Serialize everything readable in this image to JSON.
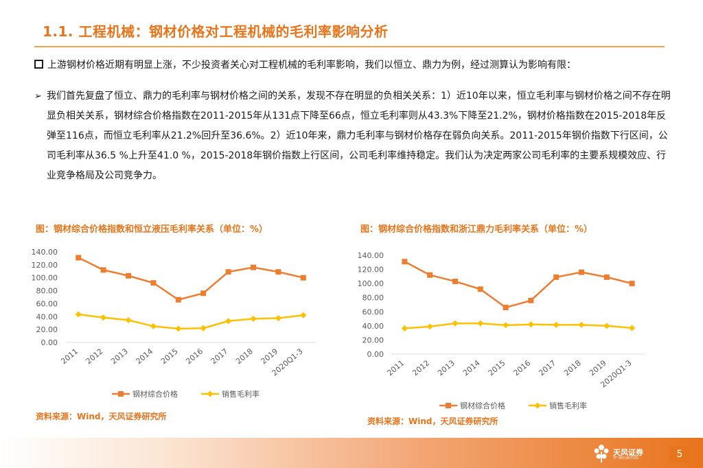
{
  "slide": {
    "title": "1.1. 工程机械：钢材价格对工程机械的毛利率影响分析",
    "bullet": "上游钢材价格近期有明显上涨，不少投资者关心对工程机械的毛利率影响，我们以恒立、鼎力为例，经过测算认为影响有限：",
    "paragraph": "我们首先复盘了恒立、鼎力的毛利率与钢材价格之间的关系，发现不存在明显的负相关关系：1）近10年以来，恒立毛利率与钢材价格之间不存在明显负相关关系，钢材综合价格指数在2011-2015年从131点下降至66点，恒立毛利率则从43.3%下降至21.2%，钢材价格指数在2015-2018年反弹至116点，而恒立毛利率从21.2%回升至36.6%。2）近10年来，鼎力毛利率与钢材价格存在弱负向关系。2011-2015年钢价指数下行区间，公司毛利率从36.5 %上升至41.0 %，2015-2018年钢价指数上行区间，公司毛利率维持稳定。我们认为决定两家公司毛利率的主要系规模效应、行业竞争格局及公司竞争力。",
    "page_number": "5"
  },
  "footer": {
    "logo_text": "天风证券",
    "logo_sub": "TF SECURITIES"
  },
  "charts": {
    "left": {
      "title": "图：钢材综合价格指数和恒立液压毛利率关系（单位：%）",
      "source": "资料来源：Wind，天风证券研究所"
    },
    "right": {
      "title": "图：钢材综合价格指数和浙江鼎力毛利率关系（单位：%）",
      "source": "资料来源：Wind，天风证券研究所"
    }
  },
  "colors": {
    "accent": "#e8741c",
    "series_steel": "#ed7d31",
    "series_margin": "#ffc000",
    "axis_text": "#595959"
  },
  "chart_data": [
    {
      "type": "line",
      "title": "图：钢材综合价格指数和恒立液压毛利率关系（单位：%）",
      "categories": [
        "2011",
        "2012",
        "2013",
        "2014",
        "2015",
        "2016",
        "2017",
        "2018",
        "2019",
        "2020Q1-3"
      ],
      "ylim": [
        0,
        140
      ],
      "yticks": [
        "0.00",
        "20.00",
        "40.00",
        "60.00",
        "80.00",
        "100.00",
        "120.00",
        "140.00"
      ],
      "grid": false,
      "legend_position": "bottom",
      "series": [
        {
          "name": "钢材综合价格",
          "values": [
            131,
            112,
            103,
            92,
            66,
            76,
            109,
            116,
            109,
            100
          ]
        },
        {
          "name": "销售毛利率",
          "values": [
            43.3,
            38.5,
            34.5,
            25.0,
            21.2,
            22.0,
            33.0,
            36.6,
            37.5,
            42.0
          ]
        }
      ]
    },
    {
      "type": "line",
      "title": "图：钢材综合价格指数和浙江鼎力毛利率关系（单位：%）",
      "categories": [
        "2011",
        "2012",
        "2013",
        "2014",
        "2015",
        "2016",
        "2017",
        "2018",
        "2019",
        "2020Q1-3"
      ],
      "ylim": [
        0,
        140
      ],
      "yticks": [
        "0.00",
        "20.00",
        "40.00",
        "60.00",
        "80.00",
        "100.00",
        "120.00",
        "140.00"
      ],
      "grid": false,
      "legend_position": "bottom",
      "series": [
        {
          "name": "钢材综合价格",
          "values": [
            131,
            112,
            103,
            92,
            66,
            76,
            109,
            116,
            109,
            100
          ]
        },
        {
          "name": "销售毛利率",
          "values": [
            36.5,
            39.0,
            43.5,
            43.5,
            41.0,
            42.0,
            41.5,
            41.5,
            40.0,
            37.0
          ]
        }
      ]
    }
  ]
}
